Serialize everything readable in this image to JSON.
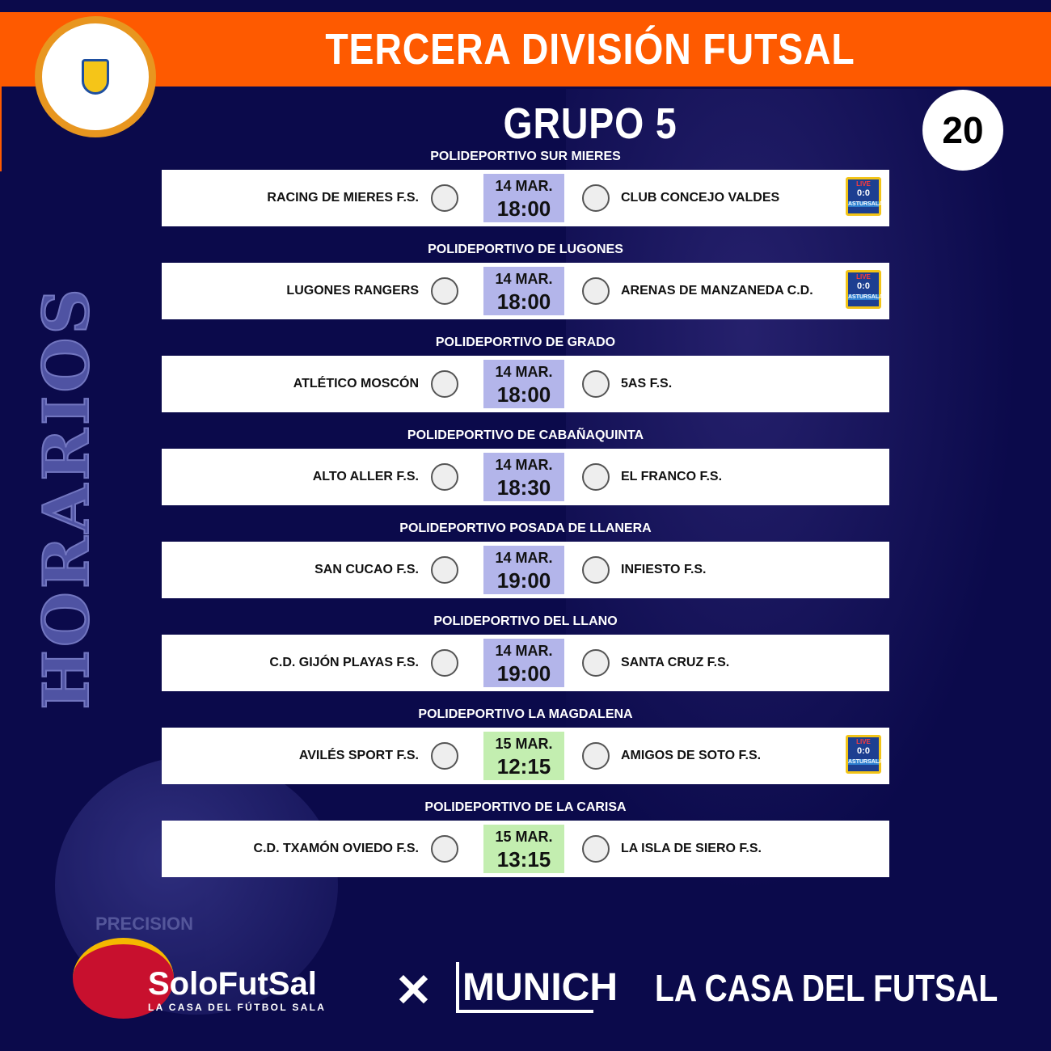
{
  "header": {
    "title": "TERCERA DIVISIÓN FUTSAL GRUPO 5",
    "round": "20",
    "side_label": "HORARIOS"
  },
  "colors": {
    "background": "#0b0a4b",
    "accent": "#fe5a00",
    "time_day1": "#b3b5ea",
    "time_day2": "#c3eeb0"
  },
  "matches": [
    {
      "venue": "POLIDEPORTIVO SUR MIERES",
      "home": "RACING DE MIERES F.S.",
      "away": "CLUB CONCEJO VALDES",
      "date": "14 MAR.",
      "time": "18:00",
      "live": true,
      "day2": false
    },
    {
      "venue": "POLIDEPORTIVO DE LUGONES",
      "home": "LUGONES RANGERS",
      "away": "ARENAS DE MANZANEDA C.D.",
      "date": "14 MAR.",
      "time": "18:00",
      "live": true,
      "day2": false
    },
    {
      "venue": "POLIDEPORTIVO DE GRADO",
      "home": "ATLÉTICO MOSCÓN",
      "away": "5AS F.S.",
      "date": "14 MAR.",
      "time": "18:00",
      "live": false,
      "day2": false
    },
    {
      "venue": "POLIDEPORTIVO DE CABAÑAQUINTA",
      "home": "ALTO ALLER F.S.",
      "away": "EL FRANCO F.S.",
      "date": "14 MAR.",
      "time": "18:30",
      "live": false,
      "day2": false
    },
    {
      "venue": "POLIDEPORTIVO POSADA DE LLANERA",
      "home": "SAN CUCAO F.S.",
      "away": "INFIESTO F.S.",
      "date": "14 MAR.",
      "time": "19:00",
      "live": false,
      "day2": false
    },
    {
      "venue": "POLIDEPORTIVO DEL LLANO",
      "home": "C.D. GIJÓN PLAYAS F.S.",
      "away": "SANTA CRUZ F.S.",
      "date": "14 MAR.",
      "time": "19:00",
      "live": false,
      "day2": false
    },
    {
      "venue": "POLIDEPORTIVO LA MAGDALENA",
      "home": "AVILÉS SPORT F.S.",
      "away": "AMIGOS DE SOTO F.S.",
      "date": "15 MAR.",
      "time": "12:15",
      "live": true,
      "day2": true
    },
    {
      "venue": "POLIDEPORTIVO DE LA CARISA",
      "home": "C.D. TXAMÓN OVIEDO F.S.",
      "away": "LA ISLA DE SIERO F.S.",
      "date": "15 MAR.",
      "time": "13:15",
      "live": false,
      "day2": true
    }
  ],
  "live_badge": {
    "live": "LIVE",
    "score": "0:0",
    "name": "ASTURSALA"
  },
  "footer": {
    "sponsor1_name": "SoloFutSal",
    "sponsor1_tagline": "LA CASA DEL FÚTBOL SALA",
    "sponsor2": "MUNICH",
    "slogan": "LA CASA DEL FUTSAL",
    "ball_text": "PRECISION"
  }
}
